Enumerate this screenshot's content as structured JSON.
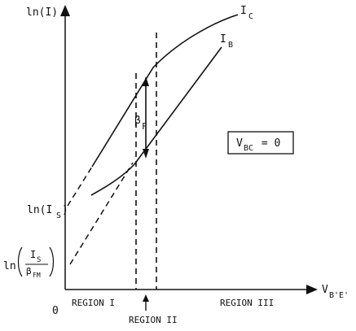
{
  "axes": {
    "y_label": "ln(I)",
    "x_label_main": "V",
    "x_label_sub": "B'E'",
    "origin": "0"
  },
  "curves": {
    "ic_main": "I",
    "ic_sub": "C",
    "ib_main": "I",
    "ib_sub": "B"
  },
  "y_ticks": {
    "ln_is_prefix": "ln(I",
    "ln_is_sub": "S",
    "ln_is_suffix": ")",
    "ratio_prefix": "ln",
    "ratio_num_main": "I",
    "ratio_num_sub": "S",
    "ratio_den_main": "β",
    "ratio_den_sub": "FM"
  },
  "annotation": {
    "beta_main": "β",
    "beta_sub": "F"
  },
  "condition_box": {
    "v": "V",
    "sub": "BC",
    "rest": " = 0"
  },
  "regions": {
    "r1": "REGION I",
    "r2": "REGION II",
    "r3": "REGION III"
  }
}
